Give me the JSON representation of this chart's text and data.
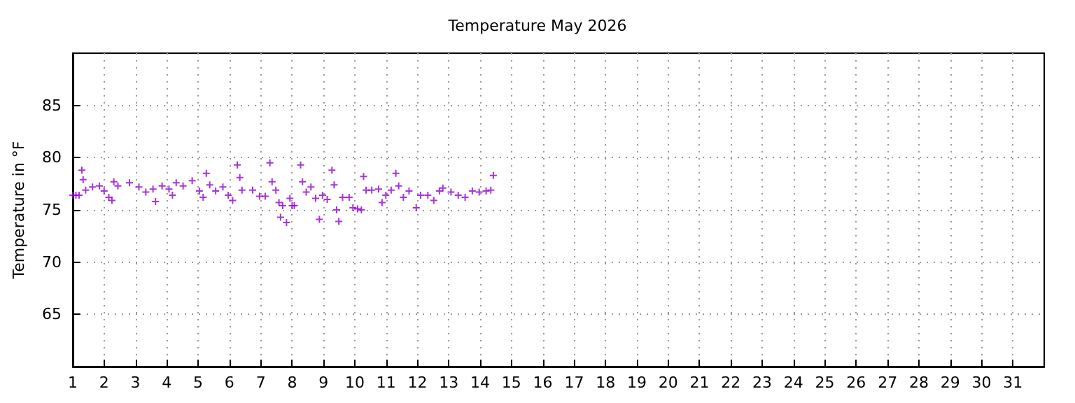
{
  "chart_data": {
    "type": "scatter",
    "title": "Temperature May 2026",
    "ylabel": "Temperature in °F",
    "xlim": [
      1,
      32
    ],
    "xticks": [
      1,
      2,
      3,
      4,
      5,
      6,
      7,
      8,
      9,
      10,
      11,
      12,
      13,
      14,
      15,
      16,
      17,
      18,
      19,
      20,
      21,
      22,
      23,
      24,
      25,
      26,
      27,
      28,
      29,
      30,
      31
    ],
    "ylim": [
      60,
      90
    ],
    "yticks": [
      65,
      70,
      75,
      80,
      85
    ],
    "grid": true,
    "marker": "cross",
    "series": [
      {
        "color": "#9400d3",
        "x": [
          1.0,
          1.1,
          1.2,
          1.29,
          1.33,
          1.41,
          1.63,
          1.85,
          2.0,
          2.15,
          2.25,
          2.31,
          2.44,
          2.81,
          3.11,
          3.33,
          3.56,
          3.64,
          3.85,
          4.07,
          4.18,
          4.3,
          4.52,
          4.81,
          5.04,
          5.16,
          5.26,
          5.37,
          5.56,
          5.79,
          5.96,
          6.1,
          6.25,
          6.33,
          6.4,
          6.74,
          6.96,
          7.14,
          7.29,
          7.36,
          7.48,
          7.58,
          7.63,
          7.7,
          7.82,
          7.93,
          8.0,
          8.07,
          8.27,
          8.33,
          8.45,
          8.6,
          8.75,
          8.87,
          8.97,
          9.12,
          9.27,
          9.34,
          9.42,
          9.49,
          9.61,
          9.82,
          9.94,
          10.09,
          10.21,
          10.28,
          10.36,
          10.54,
          10.76,
          10.87,
          10.99,
          11.16,
          11.31,
          11.4,
          11.55,
          11.73,
          11.96,
          12.1,
          12.33,
          12.52,
          12.7,
          12.81,
          13.07,
          13.3,
          13.52,
          13.75,
          13.97,
          14.19,
          14.34,
          14.42
        ],
        "values": [
          76.4,
          76.4,
          76.4,
          78.8,
          77.9,
          76.9,
          77.2,
          77.3,
          76.8,
          76.2,
          75.9,
          77.7,
          77.3,
          77.6,
          77.2,
          76.7,
          77.0,
          75.8,
          77.3,
          77.0,
          76.4,
          77.6,
          77.3,
          77.8,
          76.8,
          76.2,
          78.5,
          77.4,
          76.8,
          77.2,
          76.4,
          75.9,
          79.3,
          78.1,
          76.9,
          76.9,
          76.3,
          76.3,
          79.5,
          77.7,
          76.9,
          75.7,
          74.3,
          75.4,
          73.8,
          76.1,
          75.4,
          75.4,
          79.3,
          77.7,
          76.7,
          77.2,
          76.1,
          74.1,
          76.4,
          76.0,
          78.8,
          77.4,
          75.0,
          73.9,
          76.2,
          76.2,
          75.2,
          75.1,
          75.0,
          78.2,
          76.9,
          76.9,
          77.0,
          75.7,
          76.4,
          76.9,
          78.5,
          77.3,
          76.2,
          76.8,
          75.2,
          76.4,
          76.4,
          75.9,
          76.8,
          77.1,
          76.7,
          76.4,
          76.2,
          76.8,
          76.7,
          76.8,
          76.9,
          78.3
        ]
      }
    ]
  }
}
